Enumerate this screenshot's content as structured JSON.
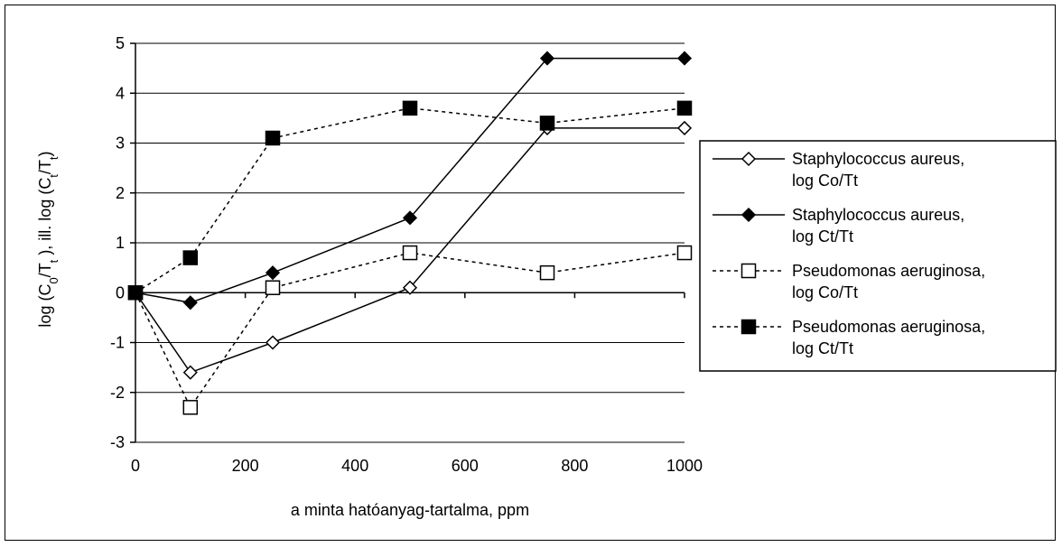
{
  "chart_data": {
    "type": "line",
    "xlabel": "a minta hatóanyag-tartalma, ppm",
    "ylabel": {
      "p1": "log (C",
      "s1": "0",
      "p2": "/T",
      "s2": "t",
      "p3": " ), ill. log (C",
      "s3": "t",
      "p4": "/T",
      "s4": "t",
      "p5": ")"
    },
    "xlim": [
      0,
      1000
    ],
    "ylim": [
      -3,
      5
    ],
    "xticks": [
      "0",
      "200",
      "400",
      "600",
      "800",
      "1000"
    ],
    "yticks": [
      "5",
      "4",
      "3",
      "2",
      "1",
      "0",
      "-1",
      "-2",
      "-3"
    ],
    "grid": "horizontal",
    "legend_position": "right",
    "series": [
      {
        "legend": [
          "Staphylococcus aureus,",
          "log Co/Tt"
        ],
        "line": "solid",
        "marker": "diamond-open",
        "points": [
          [
            0,
            0
          ],
          [
            100,
            -1.6
          ],
          [
            250,
            -1.0
          ],
          [
            500,
            0.1
          ],
          [
            750,
            3.3
          ],
          [
            1000,
            3.3
          ]
        ]
      },
      {
        "legend": [
          "Staphylococcus aureus,",
          "log Ct/Tt"
        ],
        "line": "solid",
        "marker": "diamond-filled",
        "points": [
          [
            0,
            0
          ],
          [
            100,
            -0.2
          ],
          [
            250,
            0.4
          ],
          [
            500,
            1.5
          ],
          [
            750,
            4.7
          ],
          [
            1000,
            4.7
          ]
        ]
      },
      {
        "legend": [
          "Pseudomonas aeruginosa,",
          "log Co/Tt"
        ],
        "line": "dashed",
        "marker": "square-open",
        "points": [
          [
            0,
            0
          ],
          [
            100,
            -2.3
          ],
          [
            250,
            0.1
          ],
          [
            500,
            0.8
          ],
          [
            750,
            0.4
          ],
          [
            1000,
            0.8
          ]
        ]
      },
      {
        "legend": [
          "Pseudomonas aeruginosa,",
          "log Ct/Tt"
        ],
        "line": "dashed",
        "marker": "square-filled",
        "points": [
          [
            0,
            0
          ],
          [
            100,
            0.7
          ],
          [
            250,
            3.1
          ],
          [
            500,
            3.7
          ],
          [
            750,
            3.4
          ],
          [
            1000,
            3.7
          ]
        ]
      }
    ]
  }
}
